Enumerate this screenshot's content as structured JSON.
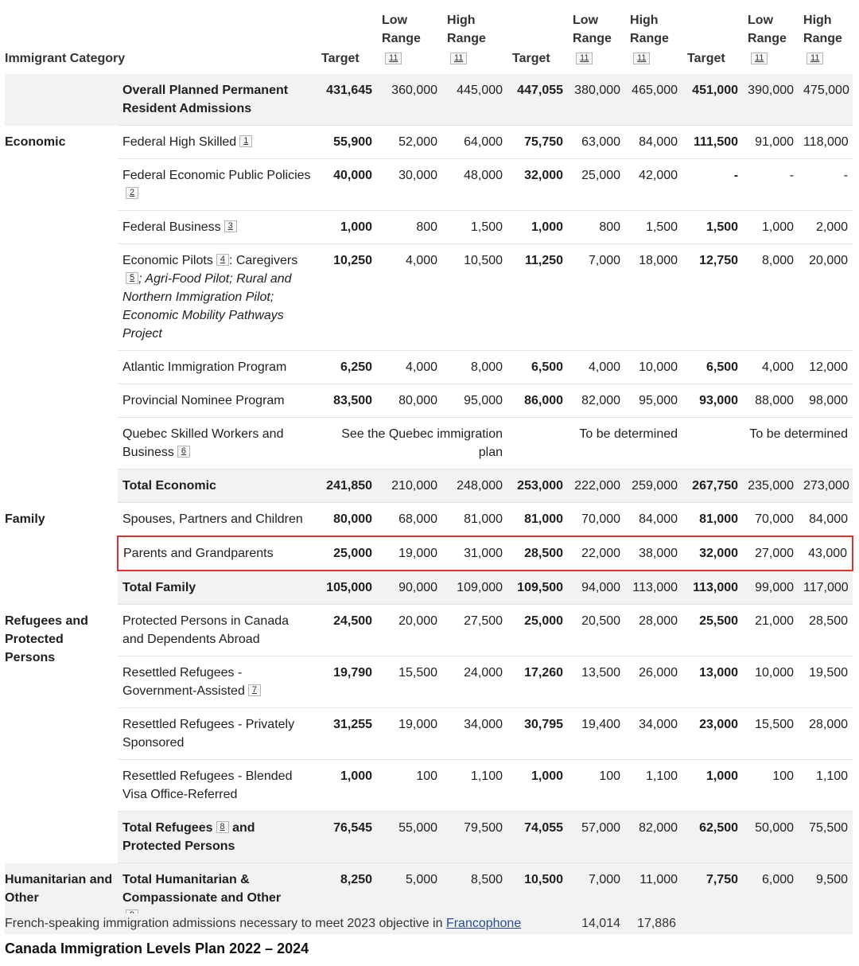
{
  "header": {
    "category": "Immigrant Category",
    "target": "Target",
    "low": "Low Range",
    "high": "High Range",
    "fn": "11"
  },
  "rows": [
    {
      "cat": "",
      "sub": "Overall Planned Permanent Resident Admissions",
      "subBold": true,
      "vals": [
        "431,645",
        "360,000",
        "445,000",
        "447,055",
        "380,000",
        "465,000",
        "451,000",
        "390,000",
        "475,000"
      ],
      "shade": true,
      "catGray": true
    },
    {
      "cat": "Economic",
      "sub": "Federal High Skilled",
      "fn": "1",
      "vals": [
        "55,900",
        "52,000",
        "64,000",
        "75,750",
        "63,000",
        "84,000",
        "111,500",
        "91,000",
        "118,000"
      ]
    },
    {
      "cat": "",
      "sub": "Federal Economic Public Policies",
      "fn": "2",
      "vals": [
        "40,000",
        "30,000",
        "48,000",
        "32,000",
        "25,000",
        "42,000",
        "-",
        "-",
        "-"
      ]
    },
    {
      "cat": "",
      "sub": "Federal Business",
      "fn": "3",
      "vals": [
        "1,000",
        "800",
        "1,500",
        "1,000",
        "800",
        "1,500",
        "1,500",
        "1,000",
        "2,000"
      ]
    },
    {
      "cat": "",
      "sub": "Economic Pilots",
      "fn": "4",
      "subAfter": ": Caregivers",
      "fn2": "5",
      "subItalic": "; Agri-Food Pilot; Rural and Northern Immigration Pilot; Economic Mobility Pathways Project",
      "vals": [
        "10,250",
        "4,000",
        "10,500",
        "11,250",
        "7,000",
        "18,000",
        "12,750",
        "8,000",
        "20,000"
      ]
    },
    {
      "cat": "",
      "sub": "Atlantic Immigration Program",
      "vals": [
        "6,250",
        "4,000",
        "8,000",
        "6,500",
        "4,000",
        "10,000",
        "6,500",
        "4,000",
        "12,000"
      ]
    },
    {
      "cat": "",
      "sub": "Provincial Nominee Program",
      "vals": [
        "83,500",
        "80,000",
        "95,000",
        "86,000",
        "82,000",
        "95,000",
        "93,000",
        "88,000",
        "98,000"
      ]
    },
    {
      "cat": "",
      "sub": "Quebec Skilled Workers and Business",
      "fn": "6",
      "spans": [
        "See the Quebec immigration plan",
        "To be determined",
        "To be determined"
      ]
    },
    {
      "cat": "",
      "sub": "Total Economic",
      "subBold": true,
      "vals": [
        "241,850",
        "210,000",
        "248,000",
        "253,000",
        "222,000",
        "259,000",
        "267,750",
        "235,000",
        "273,000"
      ],
      "shade": true
    },
    {
      "cat": "Family",
      "sub": "Spouses, Partners and Children",
      "vals": [
        "80,000",
        "68,000",
        "81,000",
        "81,000",
        "70,000",
        "84,000",
        "81,000",
        "70,000",
        "84,000"
      ]
    },
    {
      "cat": "",
      "sub": "Parents and Grandparents",
      "vals": [
        "25,000",
        "19,000",
        "31,000",
        "28,500",
        "22,000",
        "38,000",
        "32,000",
        "27,000",
        "43,000"
      ],
      "highlight": true
    },
    {
      "cat": "",
      "sub": "Total Family",
      "subBold": true,
      "vals": [
        "105,000",
        "90,000",
        "109,000",
        "109,500",
        "94,000",
        "113,000",
        "113,000",
        "99,000",
        "117,000"
      ],
      "shade": true
    },
    {
      "cat": "Refugees and Protected Persons",
      "sub": "Protected Persons in Canada and Dependents Abroad",
      "vals": [
        "24,500",
        "20,000",
        "27,500",
        "25,000",
        "20,500",
        "28,000",
        "25,500",
        "21,000",
        "28,500"
      ]
    },
    {
      "cat": "",
      "sub": "Resettled Refugees - Government-Assisted",
      "fn": "7",
      "vals": [
        "19,790",
        "15,500",
        "24,000",
        "17,260",
        "13,500",
        "26,000",
        "13,000",
        "10,000",
        "19,500"
      ]
    },
    {
      "cat": "",
      "sub": "Resettled Refugees - Privately Sponsored",
      "vals": [
        "31,255",
        "19,000",
        "34,000",
        "30,795",
        "19,400",
        "34,000",
        "23,000",
        "15,500",
        "28,000"
      ]
    },
    {
      "cat": "",
      "sub": "Resettled Refugees - Blended Visa Office-Referred",
      "vals": [
        "1,000",
        "100",
        "1,100",
        "1,000",
        "100",
        "1,100",
        "1,000",
        "100",
        "1,100"
      ]
    },
    {
      "cat": "",
      "sub": "Total Refugees",
      "fn": "8",
      "subAfter": " and Protected Persons",
      "subBold": true,
      "vals": [
        "76,545",
        "55,000",
        "79,500",
        "74,055",
        "57,000",
        "82,000",
        "62,500",
        "50,000",
        "75,500"
      ],
      "shade": true
    },
    {
      "cat": "Humanitarian and Other",
      "sub": "Total Humanitarian & Compassionate and Other",
      "fn": "9",
      "fnBlock": true,
      "subBold": true,
      "vals": [
        "8,250",
        "5,000",
        "8,500",
        "10,500",
        "7,000",
        "11,000",
        "7,750",
        "6,000",
        "9,500"
      ],
      "shade": true,
      "catGray": true
    }
  ],
  "french": {
    "label": "French-speaking immigration admissions necessary to meet 2023 objective in",
    "link": "Francophone",
    "v1": "14,014",
    "v2": "17,886"
  },
  "caption": "Canada Immigration Levels Plan 2022 – 2024",
  "colors": {
    "highlight": "#e03030",
    "shade": "#f2f2f2",
    "link": "#244c9a"
  }
}
